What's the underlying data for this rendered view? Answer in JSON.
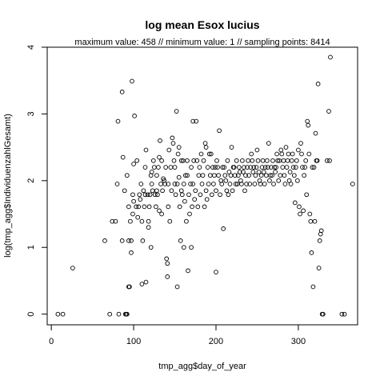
{
  "chart_data": {
    "type": "scatter",
    "title": "log mean Esox lucius",
    "subtitle": "maximum value: 458  //  minimum value: 1  // sampling points: 8414",
    "xlabel": "tmp_agg$day_of_year",
    "ylabel": "log(tmp_agg$IndividuenzahlGesamt)",
    "xlim": [
      -5,
      372
    ],
    "ylim": [
      -0.16,
      4.0
    ],
    "x_ticks": [
      0,
      100,
      200,
      300
    ],
    "y_ticks": [
      0,
      1,
      2,
      3,
      4
    ],
    "grid": false,
    "legend": "none",
    "marker": "open-circle",
    "points": [
      [
        8,
        0
      ],
      [
        14,
        0
      ],
      [
        26,
        0.69
      ],
      [
        65,
        1.1
      ],
      [
        71,
        0
      ],
      [
        74,
        1.39
      ],
      [
        78,
        1.39
      ],
      [
        80,
        1.95
      ],
      [
        81,
        2.89
      ],
      [
        82,
        0
      ],
      [
        86,
        1.1
      ],
      [
        86,
        3.33
      ],
      [
        87,
        2.35
      ],
      [
        89,
        1.85
      ],
      [
        90,
        0
      ],
      [
        91,
        0
      ],
      [
        92,
        2.08
      ],
      [
        92,
        0
      ],
      [
        94,
        1.1
      ],
      [
        94,
        1.61
      ],
      [
        94,
        0.41
      ],
      [
        95,
        0.41
      ],
      [
        96,
        1.39
      ],
      [
        97,
        1.1
      ],
      [
        97,
        0.92
      ],
      [
        98,
        3.49
      ],
      [
        99,
        1.79
      ],
      [
        99,
        1.5
      ],
      [
        100,
        2.25
      ],
      [
        100,
        1.69
      ],
      [
        101,
        2.97
      ],
      [
        103,
        1.61
      ],
      [
        104,
        2.3
      ],
      [
        105,
        1.45
      ],
      [
        106,
        1.61
      ],
      [
        107,
        1.79
      ],
      [
        108,
        1.72
      ],
      [
        109,
        1.95
      ],
      [
        110,
        1.39
      ],
      [
        110,
        0.45
      ],
      [
        111,
        1.1
      ],
      [
        112,
        1.85
      ],
      [
        113,
        1.61
      ],
      [
        114,
        1.79
      ],
      [
        114,
        2.2
      ],
      [
        115,
        2.46
      ],
      [
        115,
        0.48
      ],
      [
        117,
        1.79
      ],
      [
        118,
        1.3
      ],
      [
        118,
        1.39
      ],
      [
        119,
        1.61
      ],
      [
        120,
        1.79
      ],
      [
        121,
        2.08
      ],
      [
        121,
        1.0
      ],
      [
        122,
        1.95
      ],
      [
        122,
        2.13
      ],
      [
        123,
        1.85
      ],
      [
        124,
        2.3
      ],
      [
        125,
        2.2
      ],
      [
        126,
        1.79
      ],
      [
        127,
        1.61
      ],
      [
        128,
        1.85
      ],
      [
        128,
        2.08
      ],
      [
        129,
        1.79
      ],
      [
        130,
        2.2
      ],
      [
        131,
        1.55
      ],
      [
        131,
        2.35
      ],
      [
        132,
        2.6
      ],
      [
        133,
        1.95
      ],
      [
        134,
        1.5
      ],
      [
        134,
        2.3
      ],
      [
        135,
        1.85
      ],
      [
        136,
        2.03
      ],
      [
        137,
        2.0
      ],
      [
        138,
        1.95
      ],
      [
        139,
        2.2
      ],
      [
        140,
        0.83
      ],
      [
        141,
        0.76
      ],
      [
        141,
        0.56
      ],
      [
        142,
        1.95
      ],
      [
        142,
        1.61
      ],
      [
        143,
        2.46
      ],
      [
        144,
        1.39
      ],
      [
        145,
        2.2
      ],
      [
        146,
        1.85
      ],
      [
        147,
        2.64
      ],
      [
        148,
        2.56
      ],
      [
        149,
        2.3
      ],
      [
        150,
        1.95
      ],
      [
        150,
        2.2
      ],
      [
        151,
        1.79
      ],
      [
        152,
        3.04
      ],
      [
        153,
        1.95
      ],
      [
        153,
        0.41
      ],
      [
        154,
        2.4
      ],
      [
        155,
        2.5
      ],
      [
        155,
        2.05
      ],
      [
        156,
        1.61
      ],
      [
        157,
        1.1
      ],
      [
        158,
        2.3
      ],
      [
        158,
        1.85
      ],
      [
        159,
        1.79
      ],
      [
        160,
        2.3
      ],
      [
        161,
        1.95
      ],
      [
        161,
        1.0
      ],
      [
        162,
        1.69
      ],
      [
        163,
        2.08
      ],
      [
        164,
        1.39
      ],
      [
        165,
        2.08
      ],
      [
        165,
        2.3
      ],
      [
        166,
        0.65
      ],
      [
        167,
        1.79
      ],
      [
        168,
        1.5
      ],
      [
        169,
        1.95
      ],
      [
        170,
        2.2
      ],
      [
        170,
        1.0
      ],
      [
        171,
        1.61
      ],
      [
        172,
        2.89
      ],
      [
        172,
        1.95
      ],
      [
        173,
        2.3
      ],
      [
        174,
        1.72
      ],
      [
        175,
        1.85
      ],
      [
        176,
        2.89
      ],
      [
        177,
        2.3
      ],
      [
        178,
        1.61
      ],
      [
        179,
        2.08
      ],
      [
        180,
        2.2
      ],
      [
        181,
        1.79
      ],
      [
        182,
        2.4
      ],
      [
        183,
        1.95
      ],
      [
        184,
        2.08
      ],
      [
        185,
        2.3
      ],
      [
        186,
        1.61
      ],
      [
        187,
        2.56
      ],
      [
        188,
        2.5
      ],
      [
        188,
        1.85
      ],
      [
        189,
        1.72
      ],
      [
        190,
        2.2
      ],
      [
        191,
        1.95
      ],
      [
        192,
        2.4
      ],
      [
        193,
        2.08
      ],
      [
        194,
        2.4
      ],
      [
        195,
        1.79
      ],
      [
        196,
        2.2
      ],
      [
        197,
        1.95
      ],
      [
        198,
        2.08
      ],
      [
        199,
        2.2
      ],
      [
        200,
        1.85
      ],
      [
        200,
        0.63
      ],
      [
        201,
        2.3
      ],
      [
        202,
        2.2
      ],
      [
        203,
        2.08
      ],
      [
        204,
        2.75
      ],
      [
        205,
        1.79
      ],
      [
        206,
        2.0
      ],
      [
        207,
        1.95
      ],
      [
        208,
        2.2
      ],
      [
        209,
        1.28
      ],
      [
        210,
        2.2
      ],
      [
        211,
        2.08
      ],
      [
        212,
        2.0
      ],
      [
        213,
        1.85
      ],
      [
        214,
        2.3
      ],
      [
        215,
        1.79
      ],
      [
        216,
        2.13
      ],
      [
        217,
        1.95
      ],
      [
        218,
        2.08
      ],
      [
        219,
        2.5
      ],
      [
        220,
        1.85
      ],
      [
        221,
        2.2
      ],
      [
        222,
        2.2
      ],
      [
        223,
        2.08
      ],
      [
        224,
        1.95
      ],
      [
        225,
        2.3
      ],
      [
        226,
        1.95
      ],
      [
        227,
        2.08
      ],
      [
        228,
        2.2
      ],
      [
        229,
        2.13
      ],
      [
        230,
        2.0
      ],
      [
        231,
        1.95
      ],
      [
        232,
        2.3
      ],
      [
        233,
        2.13
      ],
      [
        234,
        2.2
      ],
      [
        235,
        1.85
      ],
      [
        236,
        2.08
      ],
      [
        237,
        1.95
      ],
      [
        238,
        2.2
      ],
      [
        239,
        2.3
      ],
      [
        240,
        2.08
      ],
      [
        241,
        1.95
      ],
      [
        242,
        2.2
      ],
      [
        243,
        2.4
      ],
      [
        244,
        2.3
      ],
      [
        245,
        2.13
      ],
      [
        246,
        2.2
      ],
      [
        247,
        1.95
      ],
      [
        248,
        2.08
      ],
      [
        249,
        2.2
      ],
      [
        250,
        2.46
      ],
      [
        251,
        2.3
      ],
      [
        252,
        2.13
      ],
      [
        253,
        2.0
      ],
      [
        254,
        1.95
      ],
      [
        255,
        2.08
      ],
      [
        256,
        2.2
      ],
      [
        257,
        2.3
      ],
      [
        258,
        2.13
      ],
      [
        259,
        1.95
      ],
      [
        260,
        2.2
      ],
      [
        261,
        2.08
      ],
      [
        262,
        2.3
      ],
      [
        263,
        2.2
      ],
      [
        264,
        2.56
      ],
      [
        265,
        2.0
      ],
      [
        266,
        2.08
      ],
      [
        267,
        2.2
      ],
      [
        268,
        2.08
      ],
      [
        269,
        2.3
      ],
      [
        270,
        1.95
      ],
      [
        271,
        2.2
      ],
      [
        272,
        2.13
      ],
      [
        273,
        2.2
      ],
      [
        274,
        2.4
      ],
      [
        275,
        2.3
      ],
      [
        276,
        2.0
      ],
      [
        277,
        2.3
      ],
      [
        278,
        2.08
      ],
      [
        279,
        2.46
      ],
      [
        280,
        2.4
      ],
      [
        281,
        2.2
      ],
      [
        282,
        2.3
      ],
      [
        283,
        2.08
      ],
      [
        284,
        1.95
      ],
      [
        285,
        2.5
      ],
      [
        286,
        2.2
      ],
      [
        287,
        2.3
      ],
      [
        288,
        2.4
      ],
      [
        289,
        2.0
      ],
      [
        290,
        2.13
      ],
      [
        291,
        1.95
      ],
      [
        292,
        2.3
      ],
      [
        293,
        2.4
      ],
      [
        294,
        2.2
      ],
      [
        295,
        2.08
      ],
      [
        296,
        1.67
      ],
      [
        297,
        2.2
      ],
      [
        298,
        2.3
      ],
      [
        299,
        2.0
      ],
      [
        300,
        2.46
      ],
      [
        301,
        1.61
      ],
      [
        302,
        1.5
      ],
      [
        303,
        2.56
      ],
      [
        304,
        2.4
      ],
      [
        305,
        2.2
      ],
      [
        306,
        1.55
      ],
      [
        307,
        2.08
      ],
      [
        308,
        2.2
      ],
      [
        309,
        2.3
      ],
      [
        310,
        1.79
      ],
      [
        311,
        2.89
      ],
      [
        312,
        2.83
      ],
      [
        313,
        2.4
      ],
      [
        314,
        1.5
      ],
      [
        315,
        1.39
      ],
      [
        316,
        0.92
      ],
      [
        317,
        2.2
      ],
      [
        318,
        0.41
      ],
      [
        319,
        2.2
      ],
      [
        320,
        1.39
      ],
      [
        321,
        2.71
      ],
      [
        322,
        2.3
      ],
      [
        323,
        2.3
      ],
      [
        324,
        3.45
      ],
      [
        325,
        0.69
      ],
      [
        326,
        1.1
      ],
      [
        327,
        1.2
      ],
      [
        328,
        1.25
      ],
      [
        329,
        0
      ],
      [
        330,
        0
      ],
      [
        335,
        2.3
      ],
      [
        337,
        3.04
      ],
      [
        338,
        2.3
      ],
      [
        339,
        3.85
      ],
      [
        353,
        0
      ],
      [
        356,
        0
      ],
      [
        366,
        1.95
      ]
    ]
  }
}
